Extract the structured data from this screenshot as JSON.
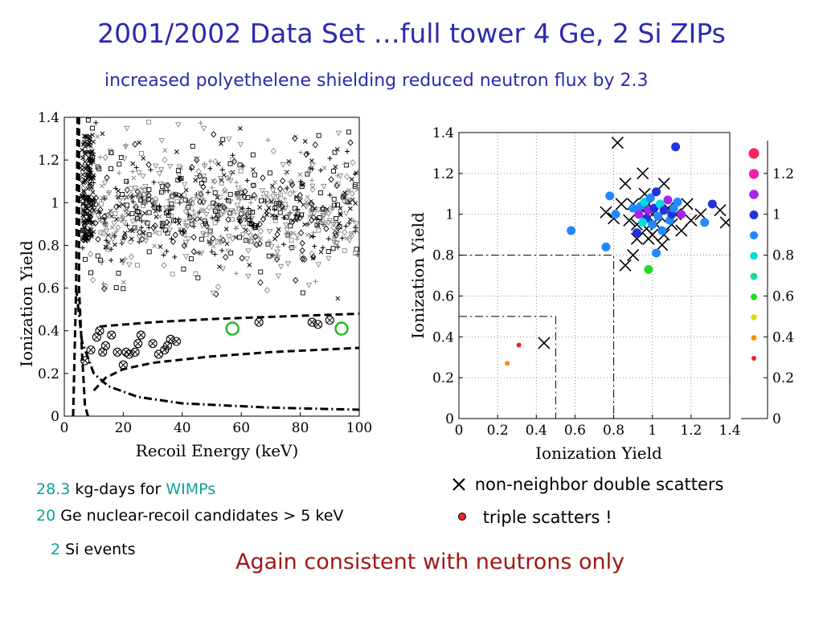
{
  "title": "2001/2002 Data Set …full tower 4 Ge, 2 Si ZIPs",
  "subtitle": "increased polyethelene shielding reduced neutron flux by 2.3",
  "stats": {
    "exposure_num": "28.3",
    "exposure_text": " kg-days for ",
    "exposure_wimps": "WIMPs",
    "candidates_num": "20",
    "candidates_text": " Ge nuclear-recoil candidates > 5 keV",
    "si_num": "2",
    "si_text": " Si events"
  },
  "legend": {
    "double_label": "non-neighbor double scatters",
    "triple_label": "triple scatters !"
  },
  "conclusion": "Again consistent with neutrons only",
  "chart_data": [
    {
      "type": "scatter",
      "xlabel": "Recoil Energy (keV)",
      "ylabel": "Ionization Yield",
      "xlim": [
        0,
        100
      ],
      "ylim": [
        0,
        1.4
      ],
      "xticks": [
        "0",
        "20",
        "40",
        "60",
        "80",
        "100"
      ],
      "yticks": [
        "0",
        "0.2",
        "0.4",
        "0.6",
        "0.8",
        "1",
        "1.2",
        "1.4"
      ],
      "grid": false,
      "series": [
        {
          "marker": "circle-cross",
          "color": "#000000",
          "points": [
            [
              7,
              0.26
            ],
            [
              9,
              0.31
            ],
            [
              11,
              0.37
            ],
            [
              12,
              0.4
            ],
            [
              13,
              0.3
            ],
            [
              14,
              0.33
            ],
            [
              16,
              0.38
            ],
            [
              18,
              0.3
            ],
            [
              20,
              0.24
            ],
            [
              21,
              0.3
            ],
            [
              22,
              0.29
            ],
            [
              24,
              0.3
            ],
            [
              25,
              0.34
            ],
            [
              26,
              0.38
            ],
            [
              30,
              0.34
            ],
            [
              32,
              0.29
            ],
            [
              34,
              0.31
            ],
            [
              35,
              0.33
            ],
            [
              36,
              0.36
            ],
            [
              38,
              0.35
            ],
            [
              66,
              0.44
            ],
            [
              84,
              0.44
            ],
            [
              86,
              0.43
            ],
            [
              90,
              0.45
            ]
          ]
        },
        {
          "marker": "open-circle",
          "color": "#22bb22",
          "points": [
            [
              57,
              0.41
            ],
            [
              94,
              0.41
            ]
          ]
        }
      ],
      "lines": [
        {
          "style": "dashed",
          "points": [
            [
              5,
              1.4
            ],
            [
              5,
              0.6
            ],
            [
              6,
              0.3
            ],
            [
              7,
              0.05
            ],
            [
              8,
              0
            ]
          ]
        },
        {
          "style": "dashed",
          "points": [
            [
              3,
              0
            ],
            [
              4,
              0.6
            ],
            [
              4.5,
              1.4
            ]
          ]
        },
        {
          "style": "dashed",
          "points": [
            [
              12,
              0.42
            ],
            [
              30,
              0.44
            ],
            [
              50,
              0.455
            ],
            [
              70,
              0.465
            ],
            [
              100,
              0.48
            ]
          ]
        },
        {
          "style": "dashed",
          "points": [
            [
              10,
              0.12
            ],
            [
              14,
              0.18
            ],
            [
              20,
              0.22
            ],
            [
              30,
              0.25
            ],
            [
              50,
              0.28
            ],
            [
              70,
              0.3
            ],
            [
              100,
              0.32
            ]
          ]
        },
        {
          "style": "dash-dot",
          "points": [
            [
              4,
              0.6
            ],
            [
              6,
              0.35
            ],
            [
              10,
              0.2
            ],
            [
              15,
              0.14
            ],
            [
              25,
              0.09
            ],
            [
              40,
              0.06
            ],
            [
              70,
              0.04
            ],
            [
              100,
              0.03
            ]
          ]
        }
      ]
    },
    {
      "type": "scatter",
      "xlabel": "Ionization Yield",
      "ylabel": "Ionization Yield",
      "xlim": [
        0,
        1.4
      ],
      "ylim": [
        0,
        1.4
      ],
      "xticks": [
        "0",
        "0.2",
        "0.4",
        "0.6",
        "0.8",
        "1",
        "1.2",
        "1.4"
      ],
      "yticks": [
        "0",
        "0.2",
        "0.4",
        "0.6",
        "0.8",
        "1",
        "1.2",
        "1.4"
      ],
      "grid": true,
      "colorbar": {
        "ticks": [
          "0",
          "0.2",
          "0.4",
          "0.6",
          "0.8",
          "1",
          "1.2"
        ],
        "colors": [
          "#ee2222",
          "#ff8800",
          "#dddd00",
          "#22dd22",
          "#11dd99",
          "#00dddd",
          "#2288ff",
          "#2233dd",
          "#aa22ee",
          "#ee22aa",
          "#ff2255"
        ]
      },
      "series": [
        {
          "marker": "x",
          "color": "#000000",
          "points": [
            [
              0.44,
              0.37
            ],
            [
              0.82,
              1.35
            ],
            [
              0.76,
              1.01
            ],
            [
              0.8,
              0.98
            ],
            [
              0.84,
              1.05
            ],
            [
              0.88,
              0.97
            ],
            [
              0.9,
              1.05
            ],
            [
              0.92,
              0.95
            ],
            [
              0.95,
              1.02
            ],
            [
              0.97,
              0.93
            ],
            [
              0.98,
              1.05
            ],
            [
              1.0,
              1.0
            ],
            [
              1.02,
              0.95
            ],
            [
              1.04,
              0.99
            ],
            [
              1.06,
              0.9
            ],
            [
              1.08,
              1.03
            ],
            [
              1.1,
              0.95
            ],
            [
              1.12,
              1.0
            ],
            [
              1.15,
              0.92
            ],
            [
              1.18,
              1.05
            ],
            [
              1.2,
              0.97
            ],
            [
              1.25,
              1.0
            ],
            [
              1.35,
              1.02
            ],
            [
              1.38,
              0.96
            ],
            [
              0.86,
              0.75
            ],
            [
              0.9,
              0.8
            ],
            [
              0.98,
              0.88
            ],
            [
              1.05,
              0.85
            ],
            [
              0.86,
              1.15
            ],
            [
              0.96,
              1.1
            ],
            [
              1.06,
              1.15
            ],
            [
              0.95,
              1.2
            ],
            [
              1.0,
              0.9
            ],
            [
              0.92,
              0.88
            ]
          ]
        },
        {
          "marker": "dot",
          "color": "#2288ff",
          "points": [
            [
              0.31,
              0.36,
              "#ee2222"
            ],
            [
              0.25,
              0.27,
              "#ff8800"
            ],
            [
              0.58,
              0.92,
              "#2288ff"
            ],
            [
              0.76,
              0.84,
              "#2288ff"
            ],
            [
              0.78,
              1.09,
              "#2288ff"
            ],
            [
              0.81,
              1.0,
              "#2288ff"
            ],
            [
              0.9,
              1.03,
              "#2288ff"
            ],
            [
              0.92,
              0.91,
              "#2233dd"
            ],
            [
              0.93,
              1.0,
              "#aa22ee"
            ],
            [
              0.94,
              1.04,
              "#2288ff"
            ],
            [
              0.96,
              1.06,
              "#00dddd"
            ],
            [
              0.97,
              0.98,
              "#2233dd"
            ],
            [
              0.98,
              1.02,
              "#aa22ee"
            ],
            [
              0.99,
              1.08,
              "#2288ff"
            ],
            [
              1.0,
              0.95,
              "#2288ff"
            ],
            [
              1.01,
              1.03,
              "#2233dd"
            ],
            [
              1.02,
              1.11,
              "#2233dd"
            ],
            [
              1.03,
              0.99,
              "#2288ff"
            ],
            [
              1.04,
              1.05,
              "#00dddd"
            ],
            [
              1.05,
              0.92,
              "#2288ff"
            ],
            [
              1.06,
              1.02,
              "#2233dd"
            ],
            [
              1.08,
              1.07,
              "#aa22ee"
            ],
            [
              1.09,
              0.97,
              "#2288ff"
            ],
            [
              1.1,
              1.0,
              "#2233dd"
            ],
            [
              1.13,
              1.06,
              "#2288ff"
            ],
            [
              1.15,
              1.0,
              "#aa22ee"
            ],
            [
              1.02,
              0.81,
              "#2288ff"
            ],
            [
              0.98,
              0.73,
              "#22dd22"
            ],
            [
              1.12,
              1.33,
              "#2233dd"
            ],
            [
              1.27,
              0.96,
              "#2288ff"
            ],
            [
              1.31,
              1.05,
              "#2233dd"
            ],
            [
              1.11,
              1.03,
              "#2288ff"
            ],
            [
              0.95,
              0.96,
              "#00dddd"
            ]
          ]
        }
      ],
      "lines": [
        {
          "style": "dash-dot",
          "points": [
            [
              0,
              0.8
            ],
            [
              0.8,
              0.8
            ],
            [
              0.8,
              0
            ]
          ]
        },
        {
          "style": "dash-dot",
          "points": [
            [
              0,
              0.5
            ],
            [
              0.5,
              0.5
            ],
            [
              0.5,
              0
            ]
          ]
        }
      ]
    }
  ]
}
